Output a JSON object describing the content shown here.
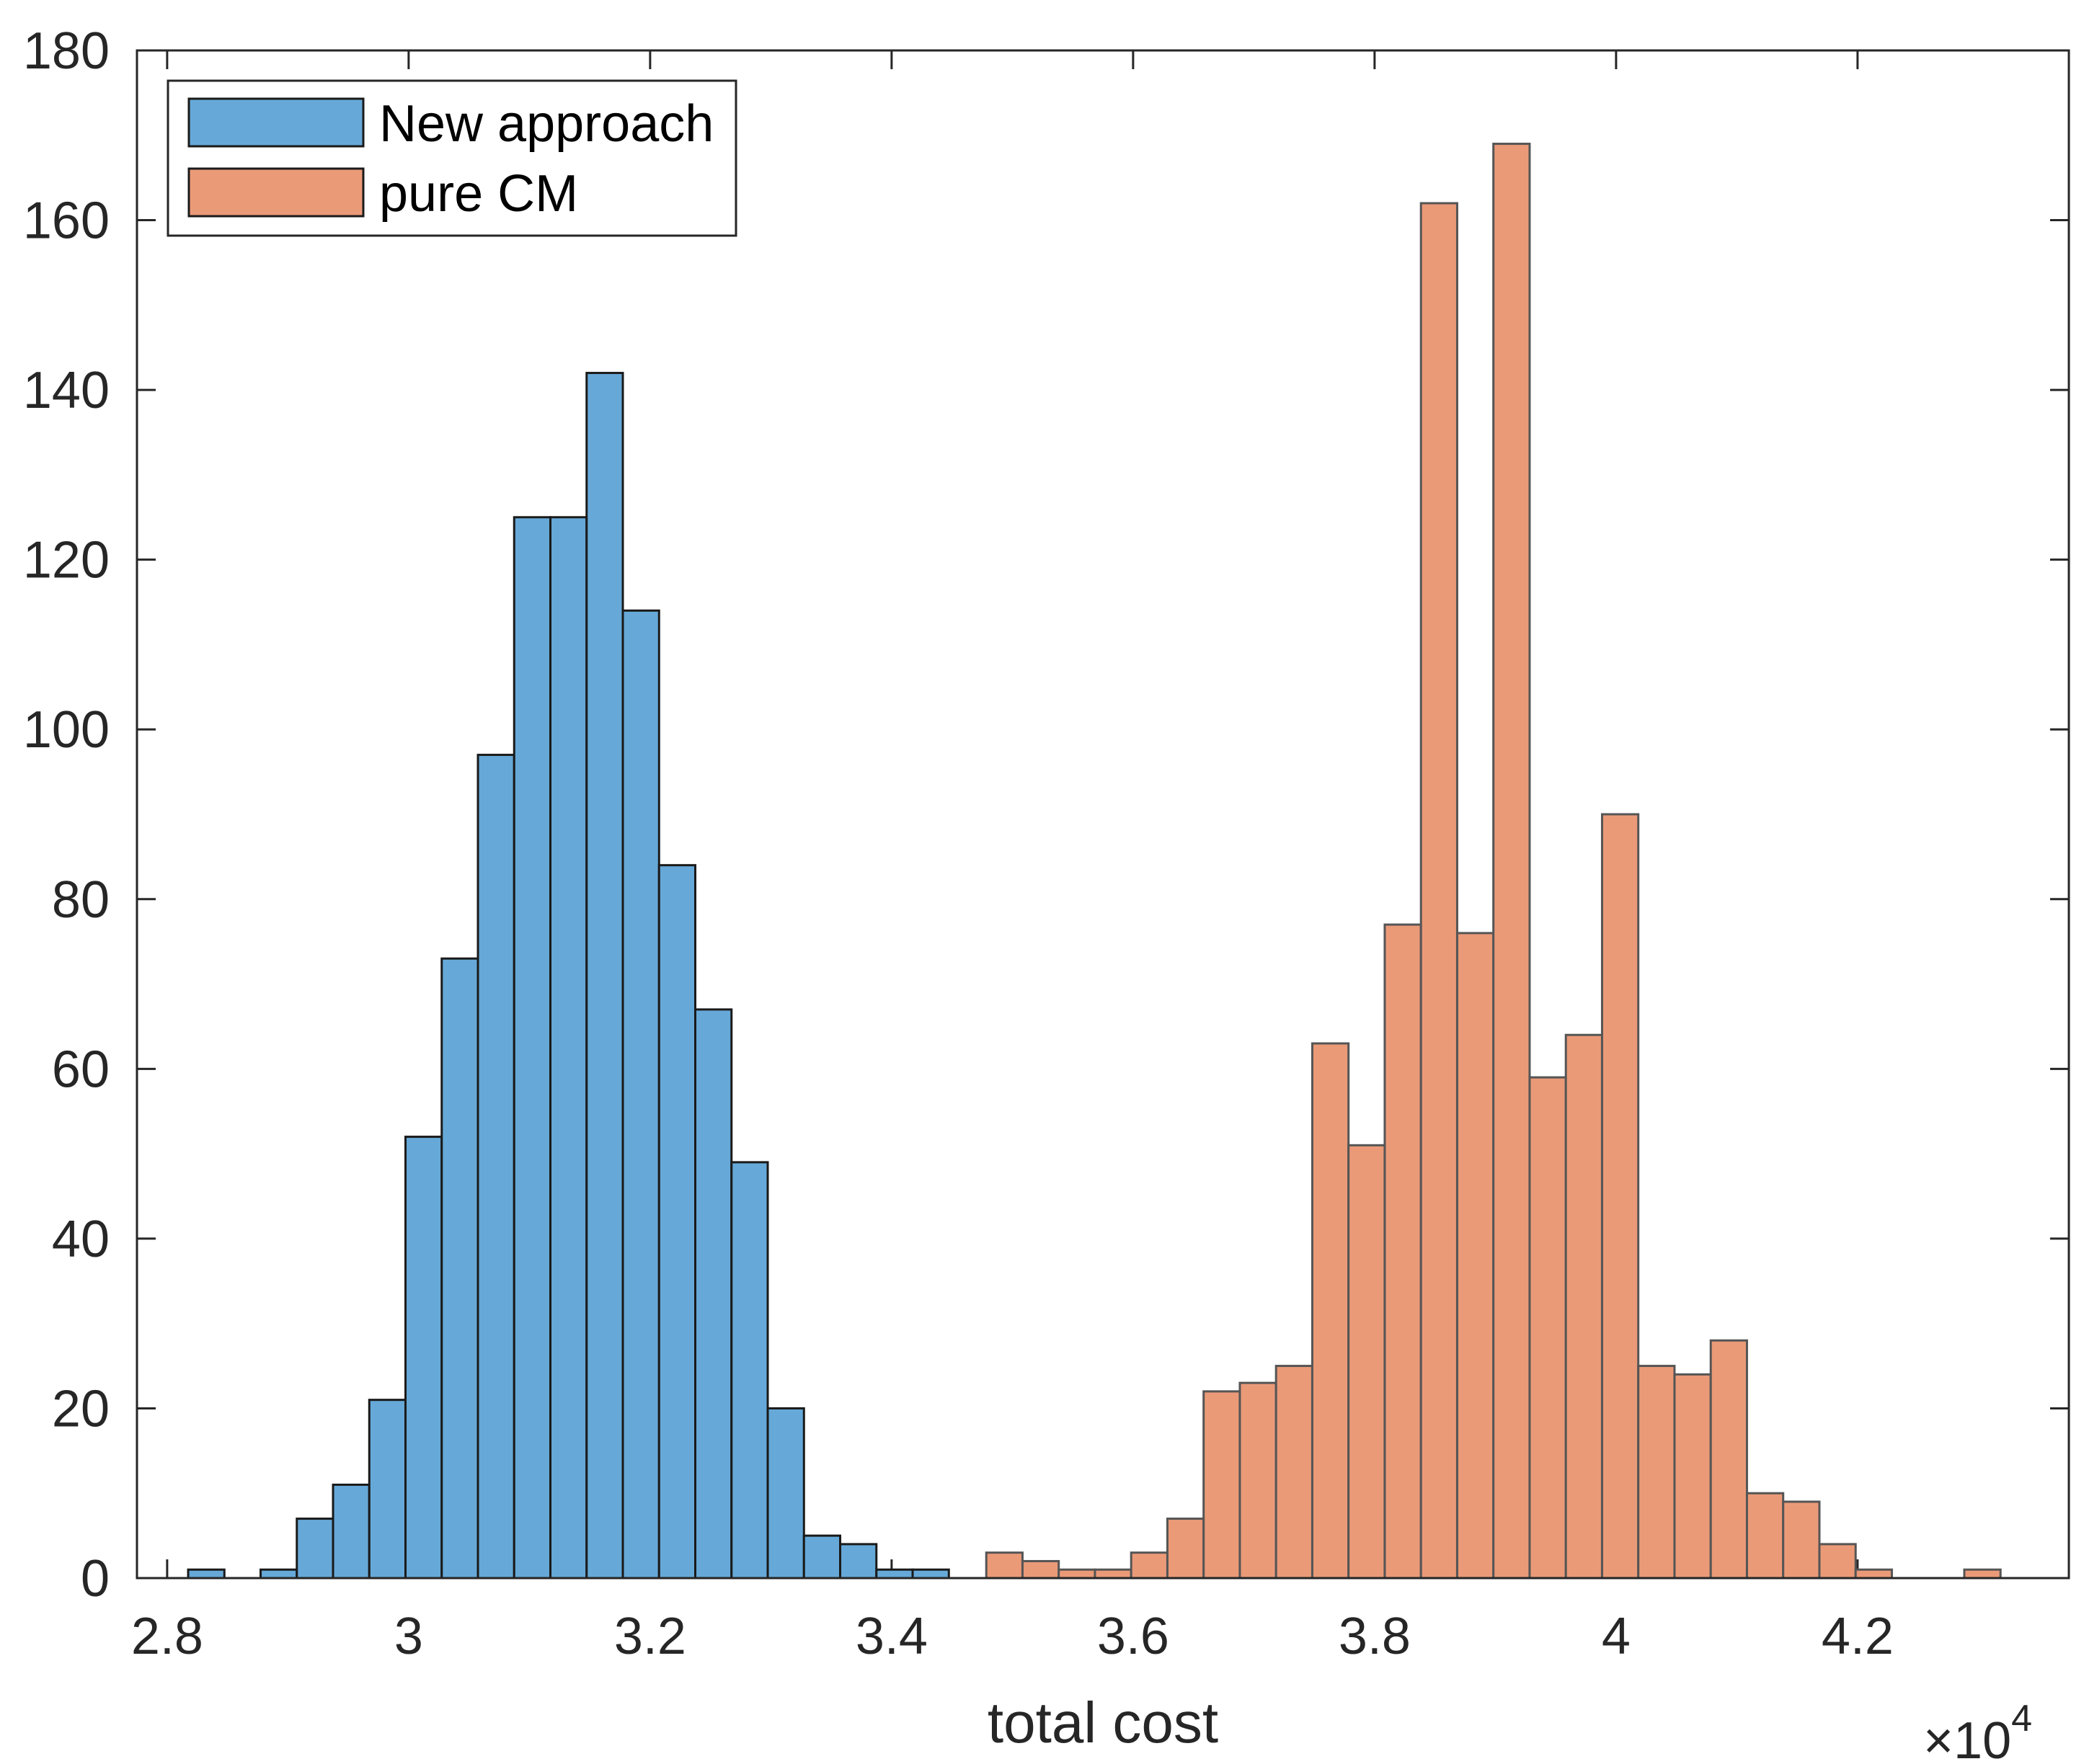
{
  "chart_data": {
    "type": "histogram",
    "title": "",
    "xlabel": "total cost",
    "ylabel": "",
    "x_multiplier_label": "×10",
    "x_multiplier_exponent": "4",
    "xlim": [
      2.775,
      4.375
    ],
    "ylim": [
      0,
      180
    ],
    "xticks": [
      "2.8",
      "3",
      "3.2",
      "3.4",
      "3.6",
      "3.8",
      "4",
      "4.2"
    ],
    "xtick_values": [
      2.8,
      3.0,
      3.2,
      3.4,
      3.6,
      3.8,
      4.0,
      4.2
    ],
    "yticks": [
      "0",
      "20",
      "40",
      "60",
      "80",
      "100",
      "120",
      "140",
      "160",
      "180"
    ],
    "ytick_values": [
      0,
      20,
      40,
      60,
      80,
      100,
      120,
      140,
      160,
      180
    ],
    "legend_position": "top-left",
    "series": [
      {
        "name": "New approach",
        "color": "#66a9d8",
        "edge_color": "#1a1a1a",
        "bin_start": 2.8174,
        "bin_width": 0.03,
        "counts": [
          1,
          0,
          1,
          7,
          11,
          21,
          52,
          73,
          97,
          125,
          125,
          142,
          114,
          84,
          67,
          49,
          20,
          5,
          4,
          1,
          1
        ]
      },
      {
        "name": "pure CM",
        "color": "#eb9a78",
        "edge_color": "#555555",
        "bin_start": 3.4784,
        "bin_width": 0.03,
        "counts": [
          3,
          2,
          1,
          1,
          3,
          7,
          22,
          23,
          25,
          63,
          51,
          77,
          162,
          76,
          169,
          59,
          64,
          90,
          25,
          24,
          28,
          10,
          9,
          4,
          1,
          0,
          0,
          1
        ]
      }
    ]
  }
}
